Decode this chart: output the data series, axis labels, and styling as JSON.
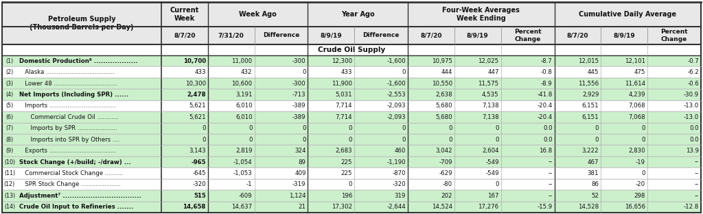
{
  "title_left": "Petroleum Supply\n(Thousand Barrels per Day)",
  "section_header": "Crude Oil Supply",
  "col_headers": [
    "8/7/20",
    "7/31/20",
    "Difference",
    "8/9/19",
    "Difference",
    "8/7/20",
    "8/9/19",
    "Percent\nChange",
    "8/7/20",
    "8/9/19",
    "Percent\nChange"
  ],
  "rows": [
    {
      "num": "(1)",
      "bold": true,
      "label": "Domestic Production⁶ ...................",
      "values": [
        "10,700",
        "11,000",
        "-300",
        "12,300",
        "-1,600",
        "10,975",
        "12,025",
        "-8.7",
        "12,015",
        "12,101",
        "-0.7"
      ]
    },
    {
      "num": "(2)",
      "bold": false,
      "label": "   Alaska ......................................",
      "values": [
        "433",
        "432",
        "0",
        "433",
        "0",
        "444",
        "447",
        "-0.8",
        "445",
        "475",
        "-6.2"
      ]
    },
    {
      "num": "(3)",
      "bold": false,
      "label": "   Lower 48 ...................................",
      "values": [
        "10,300",
        "10,600",
        "-300",
        "11,900",
        "-1,600",
        "10,550",
        "11,575",
        "-8.9",
        "11,556",
        "11,614",
        "-0.6"
      ]
    },
    {
      "num": "(4)",
      "bold": true,
      "label": "Net Imports (Including SPR) ......",
      "values": [
        "2,478",
        "3,191",
        "-713",
        "5,031",
        "-2,553",
        "2,638",
        "4,535",
        "-41.8",
        "2,929",
        "4,239",
        "-30.9"
      ]
    },
    {
      "num": "(5)",
      "bold": false,
      "label": "   Imports .....................................",
      "values": [
        "5,621",
        "6,010",
        "-389",
        "7,714",
        "-2,093",
        "5,680",
        "7,138",
        "-20.4",
        "6,151",
        "7,068",
        "-13.0"
      ]
    },
    {
      "num": "(6)",
      "bold": false,
      "label": "      Commercial Crude Oil ............",
      "values": [
        "5,621",
        "6,010",
        "-389",
        "7,714",
        "-2,093",
        "5,680",
        "7,138",
        "-20.4",
        "6,151",
        "7,068",
        "-13.0"
      ]
    },
    {
      "num": "(7)",
      "bold": false,
      "label": "      Imports by SPR ......................",
      "values": [
        "0",
        "0",
        "0",
        "0",
        "0",
        "0",
        "0",
        "0.0",
        "0",
        "0",
        "0.0"
      ]
    },
    {
      "num": "(8)",
      "bold": false,
      "label": "      Imports into SPR by Others ....",
      "values": [
        "0",
        "0",
        "0",
        "0",
        "0",
        "0",
        "0",
        "0.0",
        "0",
        "0",
        "0.0"
      ]
    },
    {
      "num": "(9)",
      "bold": false,
      "label": "   Exports .....................................",
      "values": [
        "3,143",
        "2,819",
        "324",
        "2,683",
        "460",
        "3,042",
        "2,604",
        "16.8",
        "3,222",
        "2,830",
        "13.9"
      ]
    },
    {
      "num": "(10)",
      "bold": true,
      "label": "Stock Change (+/build; -/draw) ...",
      "values": [
        "-965",
        "-1,054",
        "89",
        "225",
        "-1,190",
        "-709",
        "-549",
        "--",
        "467",
        "-19",
        "--"
      ]
    },
    {
      "num": "(11)",
      "bold": false,
      "label": "   Commercial Stock Change ..........",
      "values": [
        "-645",
        "-1,053",
        "409",
        "225",
        "-870",
        "-629",
        "-549",
        "--",
        "381",
        "0",
        "--"
      ]
    },
    {
      "num": "(12)",
      "bold": false,
      "label": "   SPR Stock Change ......................",
      "values": [
        "-320",
        "-1",
        "-319",
        "0",
        "-320",
        "-80",
        "0",
        "--",
        "86",
        "-20",
        "--"
      ]
    },
    {
      "num": "(13)",
      "bold": true,
      "label": "Adjustment⁷ ..................................",
      "values": [
        "515",
        "-609",
        "1,124",
        "196",
        "319",
        "202",
        "167",
        "--",
        "52",
        "298",
        "--"
      ]
    },
    {
      "num": "(14)",
      "bold": true,
      "label": "Crude Oil Input to Refineries .......",
      "values": [
        "14,658",
        "14,637",
        "21",
        "17,302",
        "-2,644",
        "14,524",
        "17,276",
        "-15.9",
        "14,528",
        "16,656",
        "-12.8"
      ]
    }
  ],
  "green_rows": [
    0,
    2,
    3,
    5,
    6,
    7,
    8,
    9,
    12,
    13
  ],
  "bg_header": "#e8e8e8",
  "bg_row_normal": "#ffffff",
  "bg_row_green": "#ccf0cc",
  "group_labels": [
    "Current\nWeek",
    "Week Ago",
    "Year Ago",
    "Four-Week Averages\nWeek Ending",
    "Cumulative Daily Average"
  ],
  "group_spans": [
    1,
    2,
    2,
    3,
    3
  ]
}
